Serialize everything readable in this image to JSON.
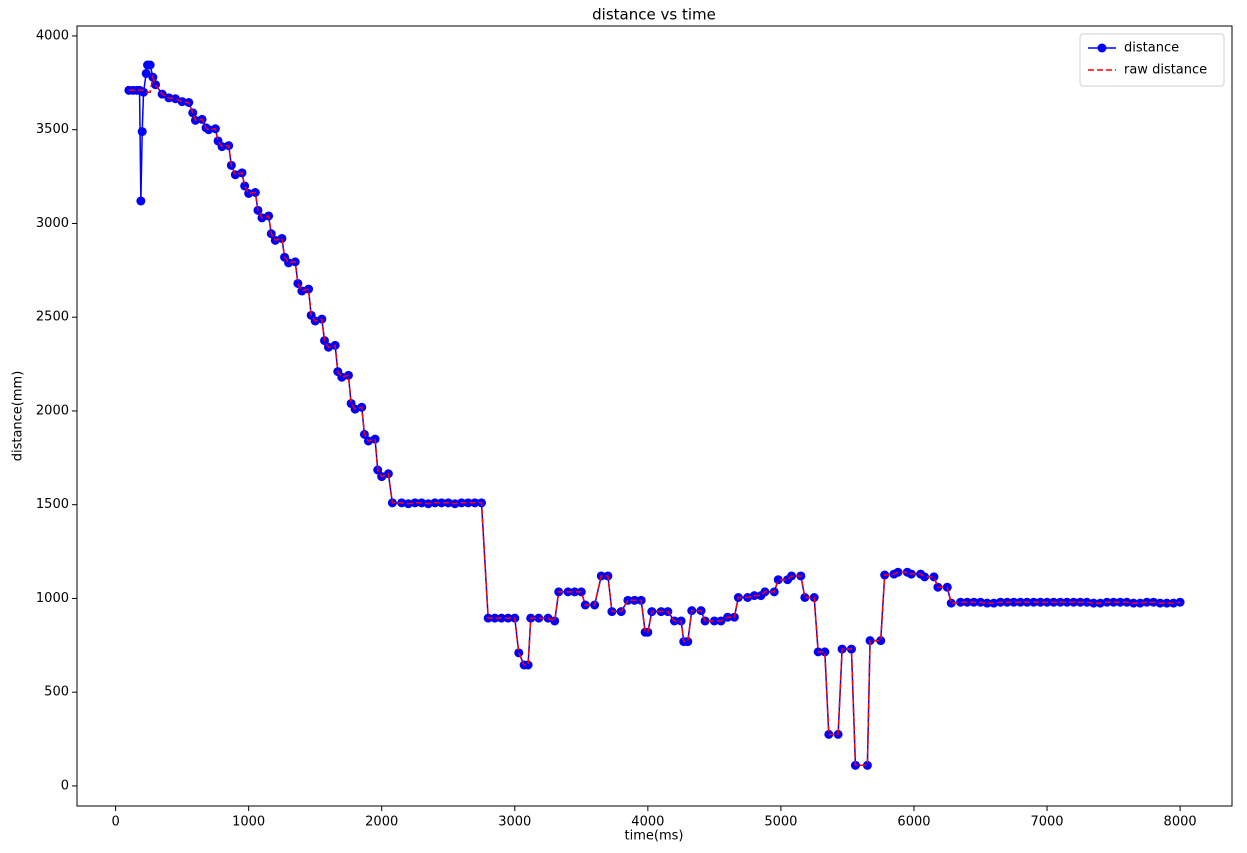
{
  "chart_data": {
    "type": "line",
    "title": "distance vs time",
    "x_label": "time(ms)",
    "y_label": "distance(mm)",
    "x": [
      100,
      130,
      160,
      180,
      190,
      200,
      210,
      230,
      240,
      260,
      280,
      300,
      350,
      400,
      450,
      500,
      550,
      580,
      600,
      650,
      680,
      700,
      750,
      770,
      800,
      850,
      870,
      900,
      950,
      970,
      1000,
      1050,
      1070,
      1100,
      1150,
      1170,
      1200,
      1250,
      1270,
      1300,
      1350,
      1370,
      1400,
      1450,
      1470,
      1500,
      1550,
      1570,
      1600,
      1650,
      1670,
      1700,
      1750,
      1770,
      1800,
      1850,
      1870,
      1900,
      1950,
      1970,
      2000,
      2050,
      2080,
      2150,
      2200,
      2250,
      2300,
      2350,
      2400,
      2450,
      2500,
      2550,
      2600,
      2650,
      2700,
      2750,
      2800,
      2850,
      2900,
      2950,
      3000,
      3030,
      3070,
      3100,
      3120,
      3180,
      3250,
      3300,
      3330,
      3400,
      3450,
      3500,
      3530,
      3600,
      3650,
      3700,
      3730,
      3800,
      3850,
      3900,
      3950,
      3980,
      4000,
      4030,
      4100,
      4150,
      4200,
      4250,
      4270,
      4300,
      4330,
      4400,
      4430,
      4500,
      4550,
      4600,
      4650,
      4680,
      4750,
      4800,
      4850,
      4880,
      4950,
      4980,
      5050,
      5080,
      5150,
      5180,
      5250,
      5280,
      5330,
      5360,
      5430,
      5460,
      5530,
      5560,
      5650,
      5670,
      5750,
      5780,
      5850,
      5880,
      5950,
      5980,
      6050,
      6080,
      6150,
      6180,
      6250,
      6280,
      6350,
      6400,
      6450,
      6500,
      6550,
      6600,
      6650,
      6700,
      6750,
      6800,
      6850,
      6900,
      6950,
      7000,
      7050,
      7100,
      7150,
      7200,
      7250,
      7300,
      7350,
      7400,
      7450,
      7500,
      7550,
      7600,
      7650,
      7700,
      7750,
      7800,
      7850,
      7900,
      7950,
      8000
    ],
    "series": [
      {
        "name": "distance",
        "color": "#0000ff",
        "style": "solid-marker",
        "values": [
          3710,
          3710,
          3710,
          3710,
          3120,
          3490,
          3700,
          3800,
          3845,
          3845,
          3780,
          3740,
          3690,
          3670,
          3665,
          3650,
          3645,
          3590,
          3550,
          3555,
          3510,
          3500,
          3505,
          3440,
          3410,
          3415,
          3310,
          3260,
          3270,
          3200,
          3160,
          3165,
          3070,
          3030,
          3040,
          2945,
          2910,
          2920,
          2820,
          2790,
          2795,
          2680,
          2640,
          2650,
          2510,
          2480,
          2490,
          2375,
          2340,
          2350,
          2210,
          2180,
          2190,
          2040,
          2010,
          2020,
          1875,
          1840,
          1850,
          1685,
          1650,
          1665,
          1510,
          1510,
          1505,
          1510,
          1510,
          1505,
          1510,
          1510,
          1510,
          1505,
          1510,
          1510,
          1510,
          1510,
          895,
          895,
          895,
          895,
          895,
          710,
          645,
          645,
          895,
          895,
          895,
          880,
          1035,
          1035,
          1035,
          1035,
          965,
          965,
          1120,
          1120,
          930,
          930,
          990,
          990,
          990,
          820,
          820,
          930,
          930,
          930,
          880,
          880,
          770,
          770,
          935,
          935,
          880,
          880,
          880,
          900,
          900,
          1005,
          1005,
          1015,
          1015,
          1035,
          1035,
          1100,
          1100,
          1120,
          1120,
          1005,
          1005,
          715,
          715,
          275,
          275,
          730,
          730,
          110,
          110,
          775,
          775,
          1125,
          1130,
          1140,
          1140,
          1130,
          1130,
          1115,
          1115,
          1060,
          1060,
          975,
          980,
          980,
          980,
          980,
          975,
          975,
          980,
          980,
          980,
          980,
          980,
          980,
          980,
          980,
          980,
          980,
          980,
          980,
          980,
          980,
          975,
          975,
          980,
          980,
          980,
          980,
          975,
          975,
          980,
          980,
          975,
          975,
          975,
          980
        ]
      },
      {
        "name": "raw distance",
        "color": "#ff0000",
        "style": "dashed",
        "values": [
          3710,
          3710,
          3710,
          3710,
          3710,
          3710,
          3710,
          3700,
          3700,
          3700,
          3780,
          3740,
          3690,
          3670,
          3665,
          3650,
          3645,
          3590,
          3550,
          3555,
          3510,
          3500,
          3505,
          3440,
          3410,
          3415,
          3310,
          3260,
          3270,
          3200,
          3160,
          3165,
          3070,
          3030,
          3040,
          2945,
          2910,
          2920,
          2820,
          2790,
          2795,
          2680,
          2640,
          2650,
          2510,
          2480,
          2490,
          2375,
          2340,
          2350,
          2210,
          2180,
          2190,
          2040,
          2010,
          2020,
          1875,
          1840,
          1850,
          1685,
          1650,
          1665,
          1510,
          1510,
          1505,
          1510,
          1510,
          1505,
          1510,
          1510,
          1510,
          1505,
          1510,
          1510,
          1510,
          1510,
          895,
          895,
          895,
          895,
          895,
          710,
          645,
          645,
          895,
          895,
          895,
          880,
          1035,
          1035,
          1035,
          1035,
          965,
          965,
          1120,
          1120,
          930,
          930,
          990,
          990,
          990,
          820,
          820,
          930,
          930,
          930,
          880,
          880,
          770,
          770,
          935,
          935,
          880,
          880,
          880,
          900,
          900,
          1005,
          1005,
          1015,
          1015,
          1035,
          1035,
          1100,
          1100,
          1120,
          1120,
          1005,
          1005,
          715,
          715,
          275,
          275,
          730,
          730,
          110,
          110,
          775,
          775,
          1125,
          1130,
          1140,
          1140,
          1130,
          1130,
          1115,
          1115,
          1060,
          1060,
          975,
          980,
          980,
          980,
          980,
          975,
          975,
          980,
          980,
          980,
          980,
          980,
          980,
          980,
          980,
          980,
          980,
          980,
          980,
          980,
          980,
          975,
          975,
          980,
          980,
          980,
          980,
          975,
          975,
          980,
          980,
          975,
          975,
          975,
          980
        ]
      }
    ],
    "xlim": [
      -290,
      8390
    ],
    "ylim": [
      -107,
      4053
    ],
    "xticks": [
      0,
      1000,
      2000,
      3000,
      4000,
      5000,
      6000,
      7000,
      8000
    ],
    "yticks": [
      0,
      500,
      1000,
      1500,
      2000,
      2500,
      3000,
      3500,
      4000
    ],
    "grid": false,
    "legend": "upper right"
  }
}
